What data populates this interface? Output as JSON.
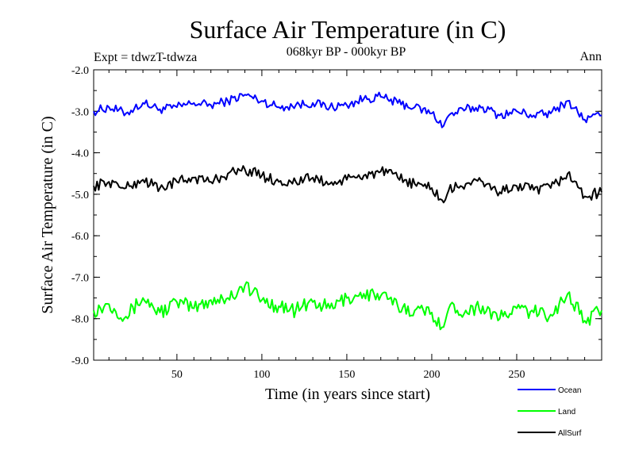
{
  "chart_data": {
    "type": "line",
    "title": "Surface Air Temperature (in C)",
    "subtitle": "068kyr BP - 000kyr BP",
    "left_label": "Expt = tdwzT-tdwza",
    "right_label": "Ann",
    "xlabel": "Time (in years since start)",
    "ylabel": "Surface Air Temperature (in C)",
    "xlim": [
      1,
      300
    ],
    "ylim": [
      -9.0,
      -2.0
    ],
    "xticks": [
      50,
      100,
      150,
      200,
      250
    ],
    "yticks": [
      -2.0,
      -3.0,
      -4.0,
      -5.0,
      -6.0,
      -7.0,
      -8.0,
      -9.0
    ],
    "ytick_labels": [
      "-2.0",
      "-3.0",
      "-4.0",
      "-5.0",
      "-6.0",
      "-7.0",
      "-8.0",
      "-9.0"
    ],
    "legend_position": "bottom-right",
    "series": [
      {
        "name": "Ocean",
        "color": "#0000ff",
        "x": [
          1,
          10,
          20,
          30,
          40,
          50,
          60,
          70,
          80,
          90,
          100,
          110,
          120,
          130,
          140,
          150,
          160,
          170,
          180,
          190,
          200,
          207,
          210,
          220,
          230,
          240,
          250,
          260,
          270,
          280,
          290,
          300
        ],
        "values": [
          -3.0,
          -2.9,
          -3.05,
          -2.8,
          -2.95,
          -2.9,
          -2.8,
          -2.85,
          -2.75,
          -2.6,
          -2.75,
          -2.9,
          -2.85,
          -2.8,
          -2.9,
          -2.85,
          -2.7,
          -2.65,
          -2.8,
          -2.9,
          -3.05,
          -3.35,
          -3.1,
          -2.95,
          -2.9,
          -3.1,
          -3.0,
          -3.1,
          -3.05,
          -2.75,
          -3.2,
          -3.1
        ]
      },
      {
        "name": "Land",
        "color": "#00ff00",
        "x": [
          1,
          10,
          20,
          30,
          40,
          50,
          60,
          70,
          80,
          90,
          100,
          110,
          120,
          130,
          140,
          150,
          160,
          170,
          180,
          190,
          200,
          207,
          210,
          220,
          230,
          240,
          250,
          260,
          270,
          280,
          290,
          300
        ],
        "values": [
          -7.8,
          -7.65,
          -7.95,
          -7.5,
          -7.85,
          -7.6,
          -7.75,
          -7.55,
          -7.5,
          -7.2,
          -7.55,
          -7.7,
          -7.8,
          -7.6,
          -7.75,
          -7.5,
          -7.4,
          -7.45,
          -7.7,
          -7.8,
          -7.85,
          -8.2,
          -7.75,
          -7.8,
          -7.7,
          -8.0,
          -7.75,
          -7.85,
          -7.9,
          -7.4,
          -8.05,
          -7.8
        ]
      },
      {
        "name": "AllSurf",
        "color": "#000000",
        "x": [
          1,
          10,
          20,
          30,
          40,
          50,
          60,
          70,
          80,
          90,
          100,
          110,
          120,
          130,
          140,
          150,
          160,
          170,
          180,
          190,
          200,
          207,
          210,
          220,
          230,
          240,
          250,
          260,
          270,
          280,
          290,
          300
        ],
        "values": [
          -4.8,
          -4.7,
          -4.85,
          -4.65,
          -4.85,
          -4.7,
          -4.6,
          -4.7,
          -4.5,
          -4.4,
          -4.55,
          -4.7,
          -4.7,
          -4.6,
          -4.75,
          -4.65,
          -4.55,
          -4.45,
          -4.6,
          -4.75,
          -4.85,
          -5.2,
          -4.9,
          -4.75,
          -4.7,
          -4.95,
          -4.8,
          -4.9,
          -4.85,
          -4.5,
          -5.05,
          -4.95
        ]
      }
    ]
  }
}
